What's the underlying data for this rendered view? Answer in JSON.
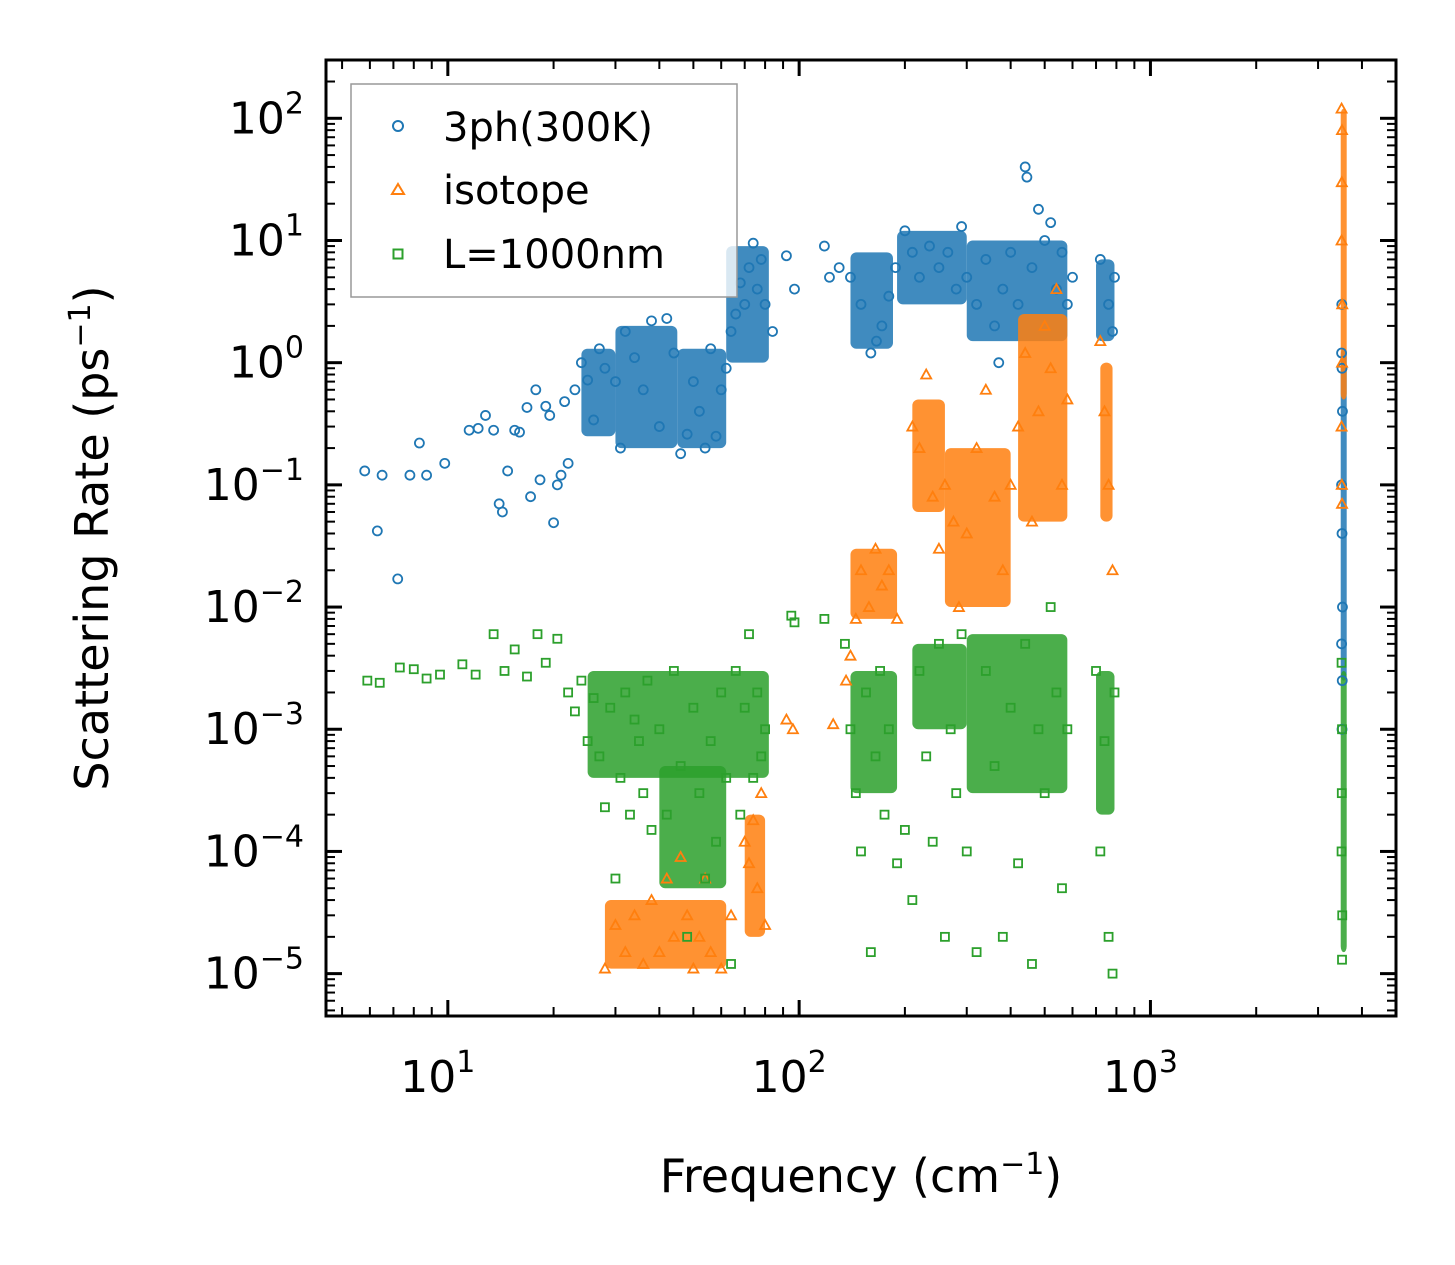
{
  "chart_data": {
    "type": "scatter",
    "title": "",
    "xlabel": "Frequency (cm",
    "xlabel_sup": "−1",
    "xlabel_end": ")",
    "ylabel": "Scattering Rate (ps",
    "ylabel_sup": "−1",
    "ylabel_end": ")",
    "xscale": "log",
    "yscale": "log",
    "xlim": [
      4.5,
      5000
    ],
    "ylim": [
      4.5e-06,
      300
    ],
    "xticks": [
      {
        "value": 10,
        "base": "10",
        "exp": "1"
      },
      {
        "value": 100,
        "base": "10",
        "exp": "2"
      },
      {
        "value": 1000,
        "base": "10",
        "exp": "3"
      }
    ],
    "yticks": [
      {
        "value": 1e-05,
        "base": "10",
        "exp": "−5"
      },
      {
        "value": 0.0001,
        "base": "10",
        "exp": "−4"
      },
      {
        "value": 0.001,
        "base": "10",
        "exp": "−3"
      },
      {
        "value": 0.01,
        "base": "10",
        "exp": "−2"
      },
      {
        "value": 0.1,
        "base": "10",
        "exp": "−1"
      },
      {
        "value": 1,
        "base": "10",
        "exp": "0"
      },
      {
        "value": 10,
        "base": "10",
        "exp": "1"
      },
      {
        "value": 100,
        "base": "10",
        "exp": "2"
      }
    ],
    "legend_position": "top-left",
    "colors": {
      "3ph": "#1f77b4",
      "isotope": "#ff7f0e",
      "boundary": "#2ca02c"
    },
    "series": [
      {
        "name": "3ph(300K)",
        "marker": "circle",
        "color": "#1f77b4",
        "points": [
          [
            5.8,
            0.13
          ],
          [
            6.3,
            0.042
          ],
          [
            6.5,
            0.12
          ],
          [
            7.2,
            0.017
          ],
          [
            7.8,
            0.12
          ],
          [
            8.3,
            0.22
          ],
          [
            8.7,
            0.12
          ],
          [
            9.8,
            0.15
          ],
          [
            11.5,
            0.28
          ],
          [
            12.2,
            0.29
          ],
          [
            12.8,
            0.37
          ],
          [
            13.5,
            0.28
          ],
          [
            14.0,
            0.07
          ],
          [
            14.3,
            0.06
          ],
          [
            14.8,
            0.13
          ],
          [
            15.5,
            0.28
          ],
          [
            16.0,
            0.27
          ],
          [
            16.8,
            0.43
          ],
          [
            17.2,
            0.08
          ],
          [
            17.8,
            0.6
          ],
          [
            18.3,
            0.11
          ],
          [
            19.0,
            0.44
          ],
          [
            19.5,
            0.37
          ],
          [
            20.0,
            0.049
          ],
          [
            20.5,
            0.1
          ],
          [
            21.0,
            0.12
          ],
          [
            21.5,
            0.48
          ],
          [
            22.0,
            0.15
          ],
          [
            23.0,
            0.6
          ],
          [
            24.0,
            1.0
          ],
          [
            25.0,
            0.72
          ],
          [
            26.0,
            0.34
          ],
          [
            27.0,
            1.3
          ],
          [
            28.0,
            0.9
          ],
          [
            30.0,
            0.7
          ],
          [
            31.0,
            0.2
          ],
          [
            32.0,
            1.8
          ],
          [
            34.0,
            1.1
          ],
          [
            36.0,
            0.6
          ],
          [
            38.0,
            2.2
          ],
          [
            40.0,
            0.3
          ],
          [
            42.0,
            2.3
          ],
          [
            44.0,
            1.2
          ],
          [
            46.0,
            0.18
          ],
          [
            48.0,
            0.26
          ],
          [
            50.0,
            0.7
          ],
          [
            52.0,
            0.4
          ],
          [
            54.0,
            0.2
          ],
          [
            56.0,
            1.3
          ],
          [
            58.0,
            0.25
          ],
          [
            60.0,
            0.6
          ],
          [
            62.0,
            0.9
          ],
          [
            64.0,
            1.8
          ],
          [
            66.0,
            2.5
          ],
          [
            68.0,
            4.5
          ],
          [
            70.0,
            3.0
          ],
          [
            72.0,
            6.0
          ],
          [
            74.0,
            9.5
          ],
          [
            76.0,
            4.0
          ],
          [
            78.0,
            7.0
          ],
          [
            80.0,
            3.0
          ],
          [
            84.0,
            1.8
          ],
          [
            92.0,
            7.5
          ],
          [
            97.0,
            4.0
          ],
          [
            118.0,
            9.0
          ],
          [
            122.0,
            5.0
          ],
          [
            130.0,
            6.0
          ],
          [
            140.0,
            5.0
          ],
          [
            150.0,
            3.0
          ],
          [
            160.0,
            1.2
          ],
          [
            166.0,
            1.5
          ],
          [
            172.0,
            2.0
          ],
          [
            180.0,
            3.5
          ],
          [
            188.0,
            6.0
          ],
          [
            200.0,
            12.0
          ],
          [
            210.0,
            8.0
          ],
          [
            220.0,
            5.0
          ],
          [
            235.0,
            9.0
          ],
          [
            250.0,
            6.0
          ],
          [
            265.0,
            8.0
          ],
          [
            280.0,
            4.0
          ],
          [
            290.0,
            13.0
          ],
          [
            300.0,
            5.0
          ],
          [
            320.0,
            3.0
          ],
          [
            340.0,
            7.0
          ],
          [
            360.0,
            2.0
          ],
          [
            370.0,
            1.0
          ],
          [
            380.0,
            4.0
          ],
          [
            400.0,
            8.0
          ],
          [
            420.0,
            3.0
          ],
          [
            440.0,
            40.0
          ],
          [
            445.0,
            33.0
          ],
          [
            460.0,
            6.0
          ],
          [
            480.0,
            18.0
          ],
          [
            500.0,
            10.0
          ],
          [
            520.0,
            14.0
          ],
          [
            540.0,
            4.0
          ],
          [
            560.0,
            8.0
          ],
          [
            580.0,
            3.0
          ],
          [
            600.0,
            5.0
          ],
          [
            720.0,
            7.0
          ],
          [
            760.0,
            3.0
          ],
          [
            780.0,
            1.8
          ],
          [
            790.0,
            5.0
          ],
          [
            3500.0,
            1.2
          ],
          [
            3510.0,
            0.9
          ],
          [
            3520.0,
            0.4
          ],
          [
            3500.0,
            0.1
          ],
          [
            3510.0,
            0.04
          ],
          [
            3520.0,
            0.01
          ],
          [
            3500.0,
            0.005
          ],
          [
            3510.0,
            0.001
          ],
          [
            3505.0,
            3.0
          ],
          [
            3515.0,
            0.0025
          ]
        ]
      },
      {
        "name": "isotope",
        "marker": "triangle",
        "color": "#ff7f0e",
        "points": [
          [
            28.0,
            1.1e-05
          ],
          [
            30.0,
            2.5e-05
          ],
          [
            32.0,
            1.5e-05
          ],
          [
            34.0,
            3e-05
          ],
          [
            36.0,
            1.2e-05
          ],
          [
            38.0,
            4e-05
          ],
          [
            40.0,
            1.5e-05
          ],
          [
            42.0,
            6e-05
          ],
          [
            44.0,
            2e-05
          ],
          [
            46.0,
            9e-05
          ],
          [
            48.0,
            3e-05
          ],
          [
            50.0,
            1.1e-05
          ],
          [
            52.0,
            2e-05
          ],
          [
            54.0,
            6e-05
          ],
          [
            56.0,
            1.5e-05
          ],
          [
            60.0,
            1.1e-05
          ],
          [
            64.0,
            3e-05
          ],
          [
            70.0,
            0.00012
          ],
          [
            72.0,
            8e-05
          ],
          [
            74.0,
            0.00018
          ],
          [
            76.0,
            5e-05
          ],
          [
            78.0,
            0.0003
          ],
          [
            80.0,
            2.5e-05
          ],
          [
            92.0,
            0.0012
          ],
          [
            96.0,
            0.001
          ],
          [
            125.0,
            0.0011
          ],
          [
            136.0,
            0.0025
          ],
          [
            140.0,
            0.004
          ],
          [
            145.0,
            0.008
          ],
          [
            150.0,
            0.02
          ],
          [
            158.0,
            0.01
          ],
          [
            165.0,
            0.03
          ],
          [
            172.0,
            0.015
          ],
          [
            180.0,
            0.02
          ],
          [
            190.0,
            0.008
          ],
          [
            210.0,
            0.3
          ],
          [
            220.0,
            0.2
          ],
          [
            230.0,
            0.8
          ],
          [
            240.0,
            0.08
          ],
          [
            250.0,
            0.03
          ],
          [
            260.0,
            0.1
          ],
          [
            275.0,
            0.05
          ],
          [
            285.0,
            0.01
          ],
          [
            300.0,
            0.04
          ],
          [
            320.0,
            0.2
          ],
          [
            340.0,
            0.6
          ],
          [
            360.0,
            0.08
          ],
          [
            380.0,
            0.02
          ],
          [
            400.0,
            0.1
          ],
          [
            420.0,
            0.3
          ],
          [
            440.0,
            1.2
          ],
          [
            460.0,
            0.05
          ],
          [
            480.0,
            0.4
          ],
          [
            500.0,
            2.0
          ],
          [
            520.0,
            0.9
          ],
          [
            540.0,
            4.0
          ],
          [
            560.0,
            0.1
          ],
          [
            580.0,
            0.5
          ],
          [
            720.0,
            1.5
          ],
          [
            740.0,
            0.4
          ],
          [
            760.0,
            0.1
          ],
          [
            780.0,
            0.02
          ],
          [
            3500.0,
            120.0
          ],
          [
            3510.0,
            80.0
          ],
          [
            3505.0,
            30.0
          ],
          [
            3500.0,
            10.0
          ],
          [
            3515.0,
            3.0
          ],
          [
            3510.0,
            1.0
          ],
          [
            3500.0,
            0.3
          ],
          [
            3505.0,
            0.1
          ],
          [
            3510.0,
            0.07
          ]
        ]
      },
      {
        "name": "L=1000nm",
        "marker": "square",
        "color": "#2ca02c",
        "points": [
          [
            5.9,
            0.0025
          ],
          [
            6.4,
            0.0024
          ],
          [
            7.3,
            0.0032
          ],
          [
            8.0,
            0.0031
          ],
          [
            8.7,
            0.0026
          ],
          [
            9.5,
            0.0028
          ],
          [
            11.0,
            0.0034
          ],
          [
            12.0,
            0.0028
          ],
          [
            13.5,
            0.006
          ],
          [
            14.5,
            0.003
          ],
          [
            15.5,
            0.0045
          ],
          [
            16.8,
            0.0027
          ],
          [
            18.0,
            0.006
          ],
          [
            19.0,
            0.0035
          ],
          [
            20.5,
            0.0055
          ],
          [
            22.0,
            0.002
          ],
          [
            23.0,
            0.0014
          ],
          [
            24.0,
            0.0025
          ],
          [
            25.0,
            0.0008
          ],
          [
            26.0,
            0.0018
          ],
          [
            27.0,
            0.0006
          ],
          [
            28.0,
            0.00023
          ],
          [
            29.0,
            0.0015
          ],
          [
            30.0,
            6e-05
          ],
          [
            31.0,
            0.0004
          ],
          [
            32.0,
            0.002
          ],
          [
            33.0,
            0.0002
          ],
          [
            34.0,
            0.0012
          ],
          [
            35.0,
            0.0008
          ],
          [
            36.0,
            0.0003
          ],
          [
            37.0,
            0.0025
          ],
          [
            38.0,
            0.00015
          ],
          [
            40.0,
            0.001
          ],
          [
            42.0,
            0.0002
          ],
          [
            44.0,
            0.003
          ],
          [
            46.0,
            0.0005
          ],
          [
            48.0,
            2e-05
          ],
          [
            50.0,
            0.0015
          ],
          [
            52.0,
            0.0003
          ],
          [
            54.0,
            6e-05
          ],
          [
            56.0,
            0.0008
          ],
          [
            58.0,
            0.00012
          ],
          [
            60.0,
            0.002
          ],
          [
            62.0,
            0.0004
          ],
          [
            64.0,
            1.2e-05
          ],
          [
            66.0,
            0.003
          ],
          [
            68.0,
            0.0002
          ],
          [
            70.0,
            0.0015
          ],
          [
            72.0,
            0.006
          ],
          [
            74.0,
            0.0004
          ],
          [
            76.0,
            0.002
          ],
          [
            78.0,
            0.0006
          ],
          [
            80.0,
            0.001
          ],
          [
            95.0,
            0.0085
          ],
          [
            97.0,
            0.0075
          ],
          [
            118.0,
            0.008
          ],
          [
            135.0,
            0.005
          ],
          [
            140.0,
            0.001
          ],
          [
            145.0,
            0.0003
          ],
          [
            150.0,
            0.0001
          ],
          [
            155.0,
            0.002
          ],
          [
            160.0,
            1.5e-05
          ],
          [
            165.0,
            0.0006
          ],
          [
            170.0,
            0.003
          ],
          [
            175.0,
            0.0002
          ],
          [
            180.0,
            0.001
          ],
          [
            190.0,
            8e-05
          ],
          [
            200.0,
            0.00015
          ],
          [
            210.0,
            4e-05
          ],
          [
            220.0,
            0.003
          ],
          [
            230.0,
            0.0006
          ],
          [
            240.0,
            0.00012
          ],
          [
            250.0,
            0.005
          ],
          [
            260.0,
            2e-05
          ],
          [
            270.0,
            0.001
          ],
          [
            280.0,
            0.0003
          ],
          [
            290.0,
            0.006
          ],
          [
            300.0,
            0.0001
          ],
          [
            320.0,
            1.5e-05
          ],
          [
            340.0,
            0.003
          ],
          [
            360.0,
            0.0005
          ],
          [
            380.0,
            2e-05
          ],
          [
            400.0,
            0.0015
          ],
          [
            420.0,
            8e-05
          ],
          [
            440.0,
            0.005
          ],
          [
            460.0,
            1.2e-05
          ],
          [
            480.0,
            0.001
          ],
          [
            500.0,
            0.0003
          ],
          [
            520.0,
            0.01
          ],
          [
            540.0,
            0.002
          ],
          [
            560.0,
            5e-05
          ],
          [
            580.0,
            0.001
          ],
          [
            700.0,
            0.003
          ],
          [
            720.0,
            0.0001
          ],
          [
            740.0,
            0.0008
          ],
          [
            760.0,
            2e-05
          ],
          [
            780.0,
            1e-05
          ],
          [
            790.0,
            0.002
          ],
          [
            3500.0,
            0.0035
          ],
          [
            3510.0,
            0.001
          ],
          [
            3505.0,
            0.0003
          ],
          [
            3500.0,
            0.0001
          ],
          [
            3515.0,
            3e-05
          ],
          [
            3510.0,
            1.3e-05
          ]
        ]
      }
    ]
  }
}
